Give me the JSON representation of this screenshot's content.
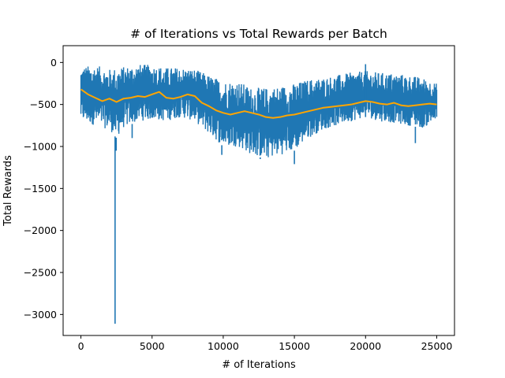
{
  "chart_data": {
    "type": "line",
    "title": "# of Iterations vs Total Rewards per Batch",
    "xlabel": "# of Iterations",
    "ylabel": "Total Rewards",
    "xlim": [
      -1250,
      26250
    ],
    "ylim": [
      -3250,
      200
    ],
    "xticks": [
      0,
      5000,
      10000,
      15000,
      20000,
      25000
    ],
    "yticks": [
      0,
      -500,
      -1000,
      -1500,
      -2000,
      -2500,
      -3000
    ],
    "grid": false,
    "legend": "none",
    "colors": {
      "raw": "#1f77b4",
      "smoothed": "#ffa500"
    },
    "series": [
      {
        "role": "raw-band",
        "x": [
          0,
          1000,
          2000,
          2500,
          3000,
          4000,
          5000,
          6000,
          7000,
          8000,
          9000,
          10000,
          11000,
          12000,
          13000,
          14000,
          15000,
          16000,
          17000,
          18000,
          19000,
          20000,
          21000,
          22000,
          23000,
          24000,
          25000
        ],
        "upper": [
          -50,
          -30,
          -80,
          -60,
          -50,
          -20,
          -30,
          -60,
          -60,
          -80,
          -150,
          -220,
          -220,
          -300,
          -300,
          -280,
          -250,
          -200,
          -180,
          -150,
          -120,
          -100,
          -120,
          -130,
          -150,
          -180,
          -250
        ],
        "lower": [
          -700,
          -750,
          -800,
          -900,
          -780,
          -700,
          -680,
          -700,
          -650,
          -700,
          -850,
          -1000,
          -1000,
          -1100,
          -1150,
          -1100,
          -1050,
          -900,
          -800,
          -750,
          -700,
          -650,
          -700,
          -720,
          -750,
          -780,
          -700
        ]
      },
      {
        "role": "raw-outliers",
        "x": [
          2400,
          2480,
          3600,
          9900,
          12600,
          15000,
          20000,
          23500
        ],
        "y": [
          -3110,
          -1050,
          -900,
          -1100,
          -1150,
          -1210,
          -20,
          -960
        ]
      },
      {
        "role": "smoothed",
        "x": [
          0,
          500,
          1000,
          1500,
          2000,
          2500,
          3000,
          3500,
          4000,
          4500,
          5000,
          5500,
          6000,
          6500,
          7000,
          7500,
          8000,
          8500,
          9000,
          9500,
          10000,
          10500,
          11000,
          11500,
          12000,
          12500,
          13000,
          13500,
          14000,
          14500,
          15000,
          15500,
          16000,
          16500,
          17000,
          17500,
          18000,
          18500,
          19000,
          19500,
          20000,
          20500,
          21000,
          21500,
          22000,
          22500,
          23000,
          23500,
          24000,
          24500,
          25000
        ],
        "y": [
          -320,
          -380,
          -420,
          -460,
          -430,
          -470,
          -430,
          -420,
          -400,
          -410,
          -380,
          -350,
          -420,
          -430,
          -410,
          -380,
          -400,
          -480,
          -520,
          -570,
          -600,
          -620,
          -600,
          -580,
          -600,
          -620,
          -650,
          -660,
          -650,
          -630,
          -620,
          -600,
          -580,
          -560,
          -540,
          -530,
          -520,
          -510,
          -500,
          -480,
          -460,
          -470,
          -490,
          -500,
          -480,
          -510,
          -520,
          -510,
          -500,
          -490,
          -500
        ]
      }
    ]
  }
}
